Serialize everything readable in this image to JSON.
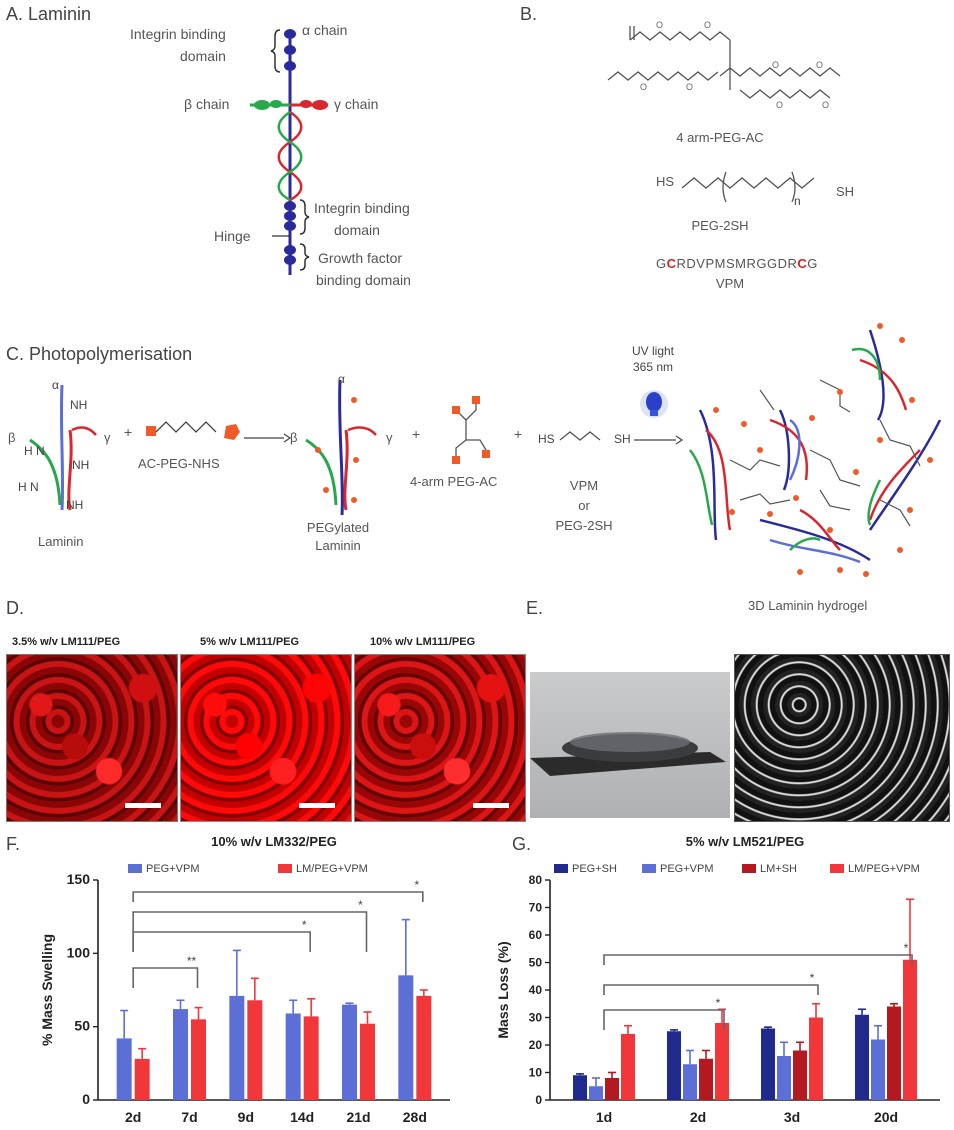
{
  "panel_a": {
    "label": "A. Laminin",
    "alpha_chain": "α chain",
    "beta_chain": "β chain",
    "gamma_chain": "γ chain",
    "integrin_domain_top_1": "Integrin binding",
    "integrin_domain_top_2": "domain",
    "integrin_domain_mid_1": "Integrin binding",
    "integrin_domain_mid_2": "domain",
    "hinge": "Hinge",
    "growth_factor_1": "Growth factor",
    "growth_factor_2": "binding domain"
  },
  "panel_b": {
    "label": "B.",
    "peg_ac": "4 arm-PEG-AC",
    "hs": "HS",
    "sh": "SH",
    "n": "n",
    "peg_2sh": "PEG-2SH",
    "vpm_sequence": [
      "G",
      "C",
      "RDVPMSMRGGDR",
      "C",
      "G"
    ],
    "vpm": "VPM"
  },
  "panel_c": {
    "label": "C. Photopolymerisation",
    "alpha": "α",
    "beta": "β",
    "gamma": "γ",
    "nh2": "NH",
    "h2n": "H N",
    "laminin": "Laminin",
    "plus": "+",
    "ac_peg_nhs": "AC-PEG-NHS",
    "pegylated_1": "PEGylated",
    "pegylated_2": "Laminin",
    "peg_ac": "4-arm PEG-AC",
    "hs": "HS",
    "sh": "SH",
    "vpm": "VPM",
    "or": "or",
    "peg_2sh": "PEG-2SH",
    "uv_1": "UV light",
    "uv_2": "365 nm"
  },
  "panel_d": {
    "label": "D.",
    "images": [
      "3.5% w/v LM111/PEG",
      "5% w/v LM111/PEG",
      "10% w/v LM111/PEG"
    ]
  },
  "panel_e": {
    "label": "E.",
    "title": "3D Laminin hydrogel"
  },
  "colors": {
    "blue_bar": "#5b6fd6",
    "red_bar": "#f2373a",
    "navy_bar": "#1f2a8c",
    "darkred_bar": "#b3191e",
    "laminin_blue": "#2a2a9c",
    "laminin_red": "#d9272e",
    "laminin_green": "#27a84a"
  },
  "chart_data": [
    {
      "type": "bar",
      "panel": "F.",
      "title": "10% w/v LM332/PEG",
      "ylabel": "% Mass Swelling",
      "xlabel": "",
      "ylim": [
        0,
        150
      ],
      "yticks": [
        "0",
        "50",
        "100",
        "150"
      ],
      "categories": [
        "2d",
        "7d",
        "9d",
        "14d",
        "21d",
        "28d"
      ],
      "series": [
        {
          "name": "PEG+VPM",
          "values": [
            42,
            62,
            71,
            59,
            65,
            85
          ],
          "errors": [
            19,
            6,
            31,
            9,
            1,
            38
          ]
        },
        {
          "name": "LM/PEG+VPM",
          "values": [
            28,
            55,
            68,
            57,
            52,
            71
          ],
          "errors": [
            7,
            8,
            15,
            12,
            8,
            4
          ]
        }
      ],
      "significance": [
        {
          "from": "2d",
          "to": "7d",
          "mark": "**"
        },
        {
          "from": "2d",
          "to": "14d",
          "mark": "*"
        },
        {
          "from": "2d",
          "to": "21d",
          "mark": "*"
        },
        {
          "from": "2d",
          "to": "28d",
          "mark": "*"
        }
      ]
    },
    {
      "type": "bar",
      "panel": "G.",
      "title": "5% w/v LM521/PEG",
      "ylabel": "Mass Loss (%)",
      "xlabel": "",
      "ylim": [
        0,
        80
      ],
      "yticks": [
        "0",
        "10",
        "20",
        "30",
        "40",
        "50",
        "60",
        "70",
        "80"
      ],
      "categories": [
        "1d",
        "2d",
        "3d",
        "20d"
      ],
      "series": [
        {
          "name": "PEG+SH",
          "values": [
            9,
            25,
            26,
            31
          ],
          "errors": [
            0.5,
            0.5,
            0.5,
            2
          ]
        },
        {
          "name": "PEG+VPM",
          "values": [
            5,
            13,
            16,
            22
          ],
          "errors": [
            3,
            5,
            5,
            5
          ]
        },
        {
          "name": "LM+SH",
          "values": [
            8,
            15,
            18,
            34
          ],
          "errors": [
            2,
            3,
            3,
            1
          ]
        },
        {
          "name": "LM/PEG+VPM",
          "values": [
            24,
            28,
            30,
            51
          ],
          "errors": [
            3,
            5,
            5,
            22
          ]
        }
      ],
      "significance": [
        {
          "from": "1d",
          "to": "2d",
          "mark": "*"
        },
        {
          "from": "1d",
          "to": "3d",
          "mark": "*"
        },
        {
          "from": "1d",
          "to": "20d",
          "mark": "*"
        }
      ]
    }
  ]
}
